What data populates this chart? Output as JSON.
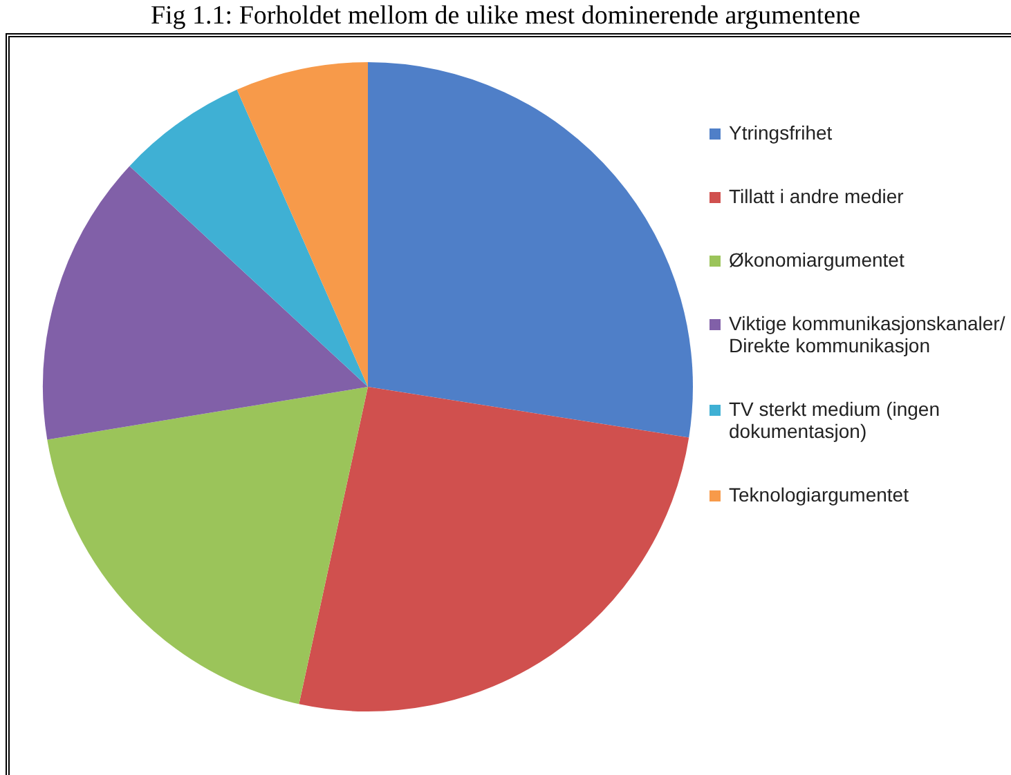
{
  "chart_data": {
    "type": "pie",
    "title": "Fig 1.1: Forholdet mellom de ulike mest dominerende argumentene",
    "categories": [
      "Ytringsfrihet",
      "Tillatt i andre medier",
      "Økonomiargumentet",
      "Viktige kommunikasjonskanaler/ Direkte kommunikasjon",
      "TV sterkt medium (ingen dokumentasjon)",
      "Teknologiargumentet"
    ],
    "values": [
      27.5,
      25.9,
      19,
      14.5,
      6.5,
      6.6
    ],
    "colors": [
      "#4f7fc8",
      "#d0504e",
      "#9bc45a",
      "#8160a8",
      "#3fb0d4",
      "#f79a4a"
    ],
    "legend": "right"
  }
}
